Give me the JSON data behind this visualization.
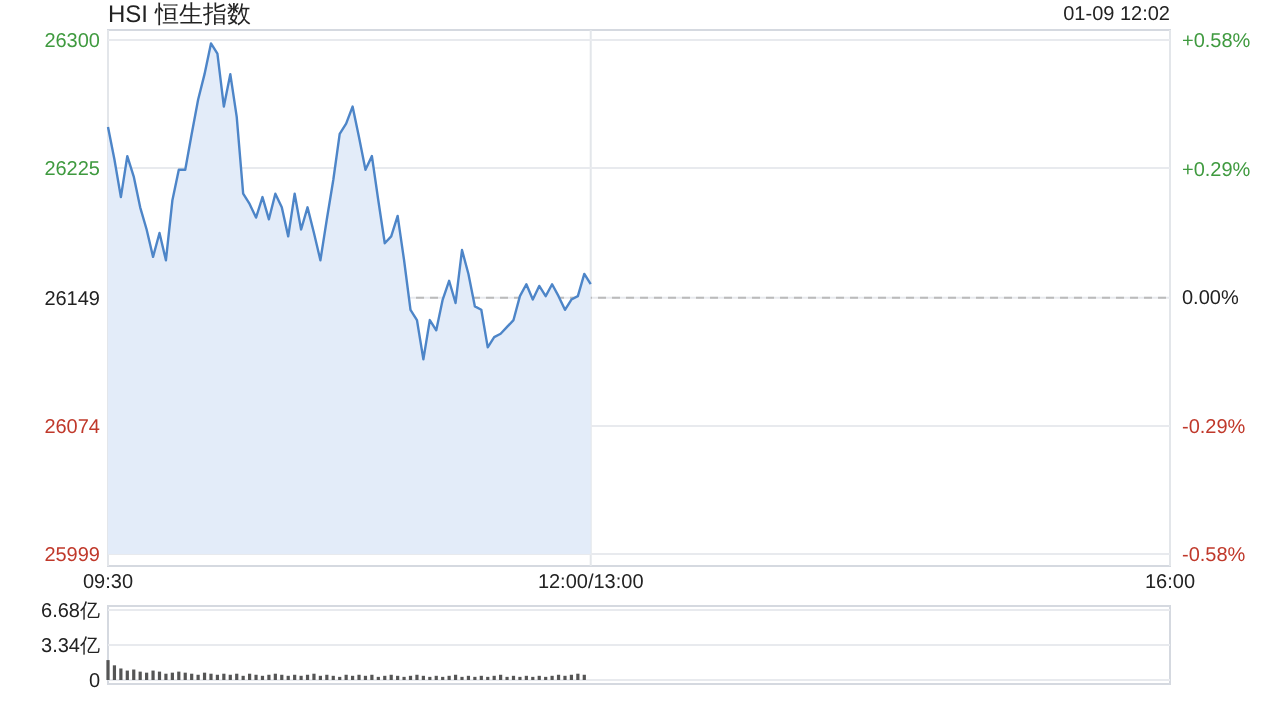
{
  "chart_data": [
    {
      "type": "area",
      "title": "HSI 恒生指数",
      "annotations": [
        "01-09 12:02"
      ],
      "color": "#4d85c8",
      "categories": [
        "09:30",
        null,
        null,
        null,
        null,
        null,
        null,
        null,
        null,
        null,
        null,
        null,
        null,
        null,
        null,
        null,
        null,
        null,
        null,
        null,
        null,
        null,
        null,
        null,
        null,
        null,
        null,
        null,
        null,
        null,
        null,
        null,
        null,
        null,
        null,
        null,
        null,
        null,
        null,
        null,
        null,
        null,
        null,
        null,
        null,
        null,
        null,
        null,
        null,
        null,
        null,
        null,
        null,
        null,
        null,
        null,
        null,
        null,
        null,
        null,
        null,
        null,
        null,
        null,
        null,
        null,
        null,
        null,
        null,
        null,
        null,
        null,
        null,
        null,
        null,
        "12:00/13:00",
        null,
        null,
        null,
        null,
        null,
        null,
        null,
        null,
        null,
        null,
        null,
        null,
        null,
        null,
        null,
        null,
        null,
        null,
        null,
        null,
        null,
        null,
        null,
        null,
        null,
        null,
        null,
        null,
        null,
        null,
        null,
        null,
        null,
        null,
        null,
        null,
        null,
        null,
        null,
        null,
        null,
        null,
        null,
        null,
        null,
        null,
        null,
        null,
        null,
        null,
        null,
        null,
        null,
        null,
        null,
        null,
        null,
        null,
        null,
        null,
        null,
        null,
        null,
        null,
        null,
        null,
        null,
        null,
        null,
        null,
        null,
        null,
        null,
        null,
        null,
        null,
        null,
        null,
        null,
        null,
        null,
        null,
        null,
        null,
        null,
        null,
        null,
        null,
        null,
        "16:00"
      ],
      "values": [
        26249,
        26230,
        26208,
        26232,
        26220,
        26202,
        26189,
        26173,
        26187,
        26171,
        26206,
        26224,
        26224,
        26245,
        26265,
        26280,
        26298,
        26292,
        26261,
        26280,
        26255,
        26210,
        26204,
        26196,
        26208,
        26195,
        26210,
        26202,
        26185,
        26210,
        26189,
        26202,
        26187,
        26171,
        26195,
        26218,
        26245,
        26251,
        26261,
        26243,
        26224,
        26232,
        26206,
        26181,
        26185,
        26197,
        26171,
        26142,
        26136,
        26113,
        26136,
        26130,
        26148,
        26159,
        26146,
        26177,
        26163,
        26144,
        26142,
        26120,
        26126,
        26128,
        26132,
        26136,
        26150,
        26157,
        26148,
        26156,
        26150,
        26157,
        26150,
        26142,
        26148,
        26150,
        26163,
        26157,
        null,
        null,
        null,
        null,
        null,
        null,
        null,
        null,
        null,
        null,
        null,
        null,
        null,
        null,
        null,
        null,
        null,
        null,
        null,
        null,
        null,
        null,
        null,
        null,
        null,
        null,
        null,
        null,
        null,
        null,
        null,
        null,
        null,
        null,
        null,
        null,
        null,
        null,
        null,
        null,
        null,
        null,
        null,
        null,
        null,
        null,
        null,
        null,
        null,
        null,
        null,
        null,
        null,
        null,
        null,
        null,
        null,
        null,
        null,
        null,
        null,
        null,
        null,
        null,
        null,
        null,
        null,
        null,
        null,
        null,
        null,
        null,
        null,
        null,
        null,
        null,
        null,
        null,
        null,
        null,
        null,
        null,
        null,
        null,
        null,
        null,
        null,
        null,
        null,
        null
      ],
      "ylim": [
        25999,
        26300
      ],
      "yticks": [
        26300,
        26225,
        26149,
        26074,
        25999
      ],
      "y2lim": [
        -0.58,
        0.58
      ],
      "y2ticks": [
        {
          "value": 0.58,
          "label": "+0.58%"
        },
        {
          "value": 0.29,
          "label": "+0.29%"
        },
        {
          "value": 0,
          "label": "0.00%"
        },
        {
          "value": -0.29,
          "label": "-0.29%"
        },
        {
          "value": -0.58,
          "label": "-0.58%"
        }
      ],
      "grid": true,
      "marker": "none",
      "ref_lines": [
        {
          "axis": "y",
          "value": 26149,
          "line_style": "dashed",
          "color": "#bbbbbb"
        }
      ]
    },
    {
      "type": "bar",
      "color": "#555555",
      "categories": [
        null,
        null,
        null,
        null,
        null,
        null,
        null,
        null,
        null,
        null,
        null,
        null,
        null,
        null,
        null,
        null,
        null,
        null,
        null,
        null,
        null,
        null,
        null,
        null,
        null,
        null,
        null,
        null,
        null,
        null,
        null,
        null,
        null,
        null,
        null,
        null,
        null,
        null,
        null,
        null,
        null,
        null,
        null,
        null,
        null,
        null,
        null,
        null,
        null,
        null,
        null,
        null,
        null,
        null,
        null,
        null,
        null,
        null,
        null,
        null,
        null,
        null,
        null,
        null,
        null,
        null,
        null,
        null,
        null,
        null,
        null,
        null,
        null,
        null,
        null,
        null,
        null,
        null,
        null,
        null,
        null,
        null,
        null,
        null,
        null,
        null,
        null,
        null,
        null,
        null,
        null,
        null,
        null,
        null,
        null,
        null,
        null,
        null,
        null,
        null,
        null,
        null,
        null,
        null,
        null,
        null,
        null,
        null,
        null,
        null,
        null,
        null,
        null,
        null,
        null,
        null,
        null,
        null,
        null,
        null,
        null,
        null,
        null,
        null,
        null,
        null,
        null,
        null,
        null,
        null,
        null,
        null,
        null,
        null,
        null,
        null,
        null,
        null,
        null,
        null,
        null,
        null,
        null,
        null,
        null,
        null,
        null,
        null,
        null,
        null,
        null,
        null,
        null,
        null,
        null,
        null,
        null,
        null,
        null,
        null,
        null,
        null,
        null,
        null,
        null,
        null
      ],
      "values": [
        1.9,
        1.4,
        1.1,
        0.9,
        1.0,
        0.8,
        0.7,
        0.9,
        0.8,
        0.6,
        0.7,
        0.8,
        0.7,
        0.6,
        0.5,
        0.7,
        0.6,
        0.5,
        0.6,
        0.5,
        0.6,
        0.4,
        0.6,
        0.5,
        0.4,
        0.5,
        0.6,
        0.5,
        0.4,
        0.5,
        0.4,
        0.5,
        0.6,
        0.4,
        0.5,
        0.4,
        0.3,
        0.5,
        0.4,
        0.5,
        0.4,
        0.5,
        0.3,
        0.4,
        0.5,
        0.4,
        0.3,
        0.4,
        0.5,
        0.4,
        0.3,
        0.4,
        0.3,
        0.4,
        0.5,
        0.3,
        0.4,
        0.3,
        0.4,
        0.3,
        0.4,
        0.5,
        0.3,
        0.4,
        0.3,
        0.4,
        0.3,
        0.4,
        0.3,
        0.4,
        0.5,
        0.4,
        0.5,
        0.6,
        0.5,
        null,
        null,
        null,
        null,
        null,
        null,
        null,
        null,
        null,
        null,
        null,
        null,
        null,
        null,
        null,
        null,
        null,
        null,
        null,
        null,
        null,
        null,
        null,
        null,
        null,
        null,
        null,
        null,
        null,
        null,
        null,
        null,
        null,
        null,
        null,
        null,
        null,
        null,
        null,
        null,
        null,
        null,
        null,
        null,
        null,
        null,
        null,
        null,
        null,
        null,
        null,
        null,
        null,
        null,
        null,
        null,
        null,
        null,
        null,
        null,
        null,
        null,
        null,
        null,
        null,
        null,
        null,
        null,
        null,
        null,
        null,
        null,
        null,
        null,
        null,
        null,
        null,
        null,
        null,
        null,
        null,
        null,
        null,
        null,
        null,
        null,
        null,
        null,
        null,
        null,
        null
      ],
      "ylim": [
        0,
        6.68
      ],
      "yticks": [
        {
          "value": 6.68,
          "label": "6.68亿"
        },
        {
          "value": 3.34,
          "label": "3.34亿"
        },
        0
      ],
      "tick_labels": "y",
      "grid": "y"
    }
  ]
}
